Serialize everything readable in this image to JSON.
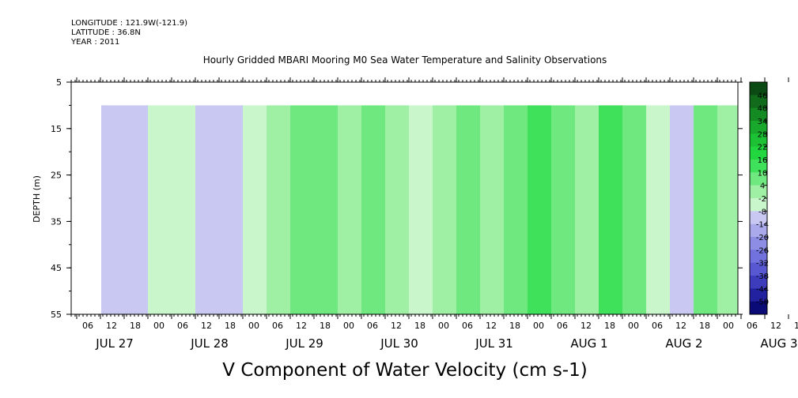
{
  "meta": {
    "longitude": "LONGITUDE : 121.9W(-121.9)",
    "latitude": "LATITUDE : 36.8N",
    "year": "YEAR : 2011"
  },
  "chart_data": {
    "type": "heatmap",
    "title": "Hourly Gridded MBARI Mooring M0 Sea Water Temperature and Salinity Observations",
    "xlabel": "V Component of Water Velocity (cm s-1)",
    "ylabel": "DEPTH (m)",
    "y_ticks": [
      5,
      15,
      25,
      35,
      45,
      55
    ],
    "ylim": [
      55,
      5
    ],
    "data_depth_range": [
      10,
      55
    ],
    "x_hour_ticks": [
      "06",
      "12",
      "18",
      "00",
      "06",
      "12",
      "18",
      "00",
      "06",
      "12",
      "18",
      "00",
      "06",
      "12",
      "18",
      "00",
      "06",
      "12",
      "18",
      "00",
      "06",
      "12",
      "18",
      "00",
      "06",
      "12",
      "18",
      "00",
      "06",
      "12",
      "18",
      "00"
    ],
    "x_day_labels": [
      "JUL 27",
      "JUL 28",
      "JUL 29",
      "JUL 30",
      "JUL 31",
      "AUG  1",
      "AUG  2",
      "AUG  3"
    ],
    "colorbar_levels": [
      46,
      40,
      34,
      28,
      22,
      16,
      10,
      4,
      -2,
      -8,
      -14,
      -20,
      -26,
      -32,
      -38,
      -44,
      -50
    ],
    "colorbar_colors": [
      "#0b4a12",
      "#106b1a",
      "#148a22",
      "#18a82b",
      "#1cc233",
      "#22d640",
      "#3fe05a",
      "#6fe87f",
      "#9ff0a5",
      "#c9f6cb",
      "#c8c8f2",
      "#a9a9ec",
      "#8d8de6",
      "#7272de",
      "#5858d2",
      "#3c3cbc",
      "#2222a0",
      "#0b0b78"
    ],
    "field_colors": {
      "strong_north": "#1fd44a",
      "moderate_north": "#52e06a",
      "weak_north": "#8feb92",
      "near_zero": "#a6f0a6",
      "weak_south": "#a8a8ee"
    },
    "column_bands": [
      {
        "day_offset_hours": 6,
        "v": -4
      },
      {
        "day_offset_hours": 12,
        "v": -6
      },
      {
        "day_offset_hours": 18,
        "v": -2
      },
      {
        "day_offset_hours": 24,
        "v": 2
      },
      {
        "day_offset_hours": 30,
        "v": -4
      },
      {
        "day_offset_hours": 36,
        "v": -6
      },
      {
        "day_offset_hours": 42,
        "v": 1
      },
      {
        "day_offset_hours": 48,
        "v": 6
      },
      {
        "day_offset_hours": 54,
        "v": 12
      },
      {
        "day_offset_hours": 60,
        "v": 10
      },
      {
        "day_offset_hours": 66,
        "v": 8
      },
      {
        "day_offset_hours": 72,
        "v": 10
      },
      {
        "day_offset_hours": 78,
        "v": 5
      },
      {
        "day_offset_hours": 84,
        "v": 3
      },
      {
        "day_offset_hours": 90,
        "v": 6
      },
      {
        "day_offset_hours": 96,
        "v": 10
      },
      {
        "day_offset_hours": 102,
        "v": 8
      },
      {
        "day_offset_hours": 108,
        "v": 14
      },
      {
        "day_offset_hours": 114,
        "v": 18
      },
      {
        "day_offset_hours": 120,
        "v": 10
      },
      {
        "day_offset_hours": 126,
        "v": 6
      },
      {
        "day_offset_hours": 132,
        "v": 18
      },
      {
        "day_offset_hours": 138,
        "v": 12
      },
      {
        "day_offset_hours": 144,
        "v": 2
      },
      {
        "day_offset_hours": 150,
        "v": -4
      },
      {
        "day_offset_hours": 156,
        "v": 10
      },
      {
        "day_offset_hours": 162,
        "v": 4
      },
      {
        "day_offset_hours": 168,
        "v": -4
      }
    ]
  }
}
